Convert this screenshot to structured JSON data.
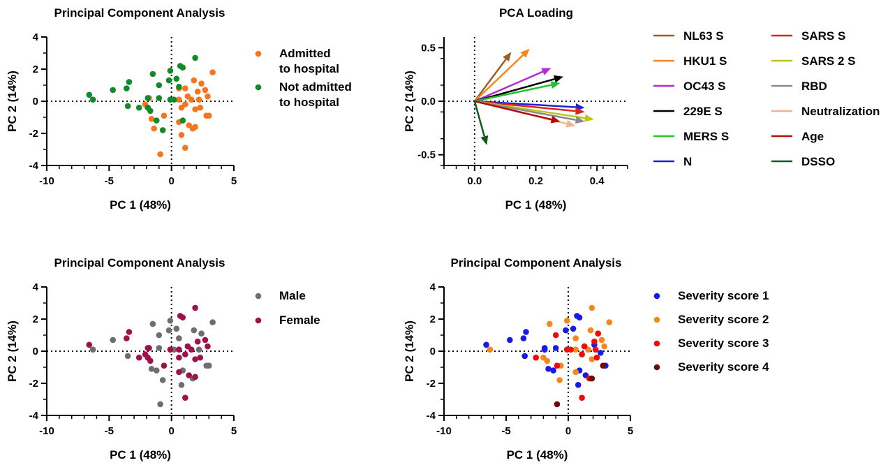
{
  "chart_data": [
    {
      "id": "p1",
      "type": "scatter",
      "title": "Principal Component Analysis",
      "xlabel": "PC 1 (48%)",
      "ylabel": "PC 2 (14%)",
      "xlim": [
        -10,
        5
      ],
      "ylim": [
        -4,
        4
      ],
      "xticks": [
        -10,
        -5,
        0,
        5
      ],
      "yticks": [
        -4,
        -2,
        0,
        2,
        4
      ],
      "grid": false,
      "legend_position": "right",
      "series": [
        {
          "name": "Admitted\nto hospital",
          "color": "#f5761e",
          "points": [
            [
              3.3,
              1.8
            ],
            [
              1.8,
              1.3
            ],
            [
              2.4,
              1.1
            ],
            [
              0.6,
              0.8
            ],
            [
              1.1,
              0.8
            ],
            [
              2.7,
              0.7
            ],
            [
              2.1,
              0.6
            ],
            [
              1.3,
              0.3
            ],
            [
              2.9,
              0.3
            ],
            [
              0.6,
              0.1
            ],
            [
              1.6,
              0.1
            ],
            [
              2.2,
              0.1
            ],
            [
              -1.8,
              0.2
            ],
            [
              -2.1,
              -0.2
            ],
            [
              1.1,
              -0.2
            ],
            [
              2.3,
              -0.4
            ],
            [
              0.8,
              -0.4
            ],
            [
              1.9,
              -0.5
            ],
            [
              2.8,
              -0.9
            ],
            [
              3.0,
              -0.9
            ],
            [
              -1.6,
              -1.1
            ],
            [
              -0.6,
              -0.9
            ],
            [
              0.6,
              -1.3
            ],
            [
              1.4,
              -1.5
            ],
            [
              1.9,
              -1.6
            ],
            [
              1.7,
              -1.7
            ],
            [
              -1.4,
              -1.7
            ],
            [
              0.8,
              -2.1
            ],
            [
              1.1,
              -2.9
            ],
            [
              -0.9,
              -3.3
            ]
          ]
        },
        {
          "name": "Not admitted\nto hospital",
          "color": "#138a2a",
          "points": [
            [
              -6.6,
              0.4
            ],
            [
              -6.3,
              0.1
            ],
            [
              -4.7,
              0.7
            ],
            [
              -3.4,
              1.2
            ],
            [
              -3.6,
              0.8
            ],
            [
              -3.5,
              -0.3
            ],
            [
              -2.6,
              -0.4
            ],
            [
              -1.5,
              1.7
            ],
            [
              1.9,
              2.7
            ],
            [
              0.7,
              2.2
            ],
            [
              0.9,
              2.1
            ],
            [
              -0.1,
              1.9
            ],
            [
              -0.2,
              1.3
            ],
            [
              0.4,
              1.4
            ],
            [
              -1.0,
              1.0
            ],
            [
              0.6,
              0.9
            ],
            [
              -1.9,
              0.2
            ],
            [
              -1.0,
              0.2
            ],
            [
              -0.1,
              0.1
            ],
            [
              0.2,
              0.1
            ],
            [
              -1.9,
              -0.4
            ],
            [
              -1.7,
              -0.6
            ],
            [
              -1.2,
              -1.2
            ],
            [
              0.9,
              -1.2
            ],
            [
              -0.7,
              -1.8
            ]
          ]
        }
      ]
    },
    {
      "id": "p2",
      "type": "vector",
      "title": "PCA Loading",
      "xlabel": "PC 1 (48%)",
      "ylabel": "PC 2 (14%)",
      "xlim": [
        -0.1,
        0.5
      ],
      "ylim": [
        -0.6,
        0.6
      ],
      "xticks": [
        0.0,
        0.2,
        0.4
      ],
      "yticks": [
        -0.5,
        0.0,
        0.5
      ],
      "xticklabels": [
        "0.0",
        "0.2",
        "0.4"
      ],
      "yticklabels": [
        "-0.5",
        "0.0",
        "0.5"
      ],
      "legend_position": "right",
      "series": [
        {
          "name": "NL63 S",
          "color": "#9a6027",
          "vector": [
            0.12,
            0.46
          ]
        },
        {
          "name": "HKU1 S",
          "color": "#f5871f",
          "vector": [
            0.18,
            0.49
          ]
        },
        {
          "name": "OC43 S",
          "color": "#b12ad6",
          "vector": [
            0.25,
            0.31
          ]
        },
        {
          "name": "229E S",
          "color": "#000000",
          "vector": [
            0.29,
            0.23
          ]
        },
        {
          "name": "MERS S",
          "color": "#1fc42a",
          "vector": [
            0.28,
            0.17
          ]
        },
        {
          "name": "N",
          "color": "#1a22d4",
          "vector": [
            0.36,
            -0.06
          ]
        },
        {
          "name": "SARS S",
          "color": "#e0241c",
          "vector": [
            0.36,
            -0.1
          ]
        },
        {
          "name": "SARS 2 S",
          "color": "#bec41c",
          "vector": [
            0.39,
            -0.17
          ]
        },
        {
          "name": "RBD",
          "color": "#8a8a8a",
          "vector": [
            0.36,
            -0.19
          ]
        },
        {
          "name": "Neutralization",
          "color": "#f0b48c",
          "vector": [
            0.33,
            -0.23
          ]
        },
        {
          "name": "Age",
          "color": "#b10f0f",
          "vector": [
            0.28,
            -0.19
          ]
        },
        {
          "name": "DSSO",
          "color": "#0e5c1a",
          "vector": [
            0.04,
            -0.41
          ]
        }
      ]
    },
    {
      "id": "p3",
      "type": "scatter",
      "title": "Principal Component Analysis",
      "xlabel": "PC 1 (48%)",
      "ylabel": "PC 2 (14%)",
      "xlim": [
        -10,
        5
      ],
      "ylim": [
        -4,
        4
      ],
      "xticks": [
        -10,
        -5,
        0,
        5
      ],
      "yticks": [
        -4,
        -2,
        0,
        2,
        4
      ],
      "grid": false,
      "legend_position": "right",
      "series": [
        {
          "name": "Male",
          "color": "#6e6e6e",
          "points": [
            [
              3.3,
              1.8
            ],
            [
              -6.3,
              0.1
            ],
            [
              -4.7,
              0.7
            ],
            [
              -1.5,
              1.7
            ],
            [
              -0.1,
              1.9
            ],
            [
              -0.2,
              1.3
            ],
            [
              0.4,
              1.4
            ],
            [
              1.8,
              1.3
            ],
            [
              0.6,
              0.8
            ],
            [
              -1.0,
              1.0
            ],
            [
              2.4,
              1.1
            ],
            [
              -1.0,
              0.2
            ],
            [
              0.2,
              0.1
            ],
            [
              2.2,
              0.1
            ],
            [
              -3.5,
              -0.3
            ],
            [
              -1.6,
              -1.1
            ],
            [
              -1.2,
              -1.2
            ],
            [
              0.9,
              -1.2
            ],
            [
              2.8,
              -0.9
            ],
            [
              3.0,
              -0.9
            ],
            [
              1.7,
              -1.7
            ],
            [
              -0.7,
              -1.8
            ],
            [
              0.8,
              -2.1
            ],
            [
              -0.9,
              -3.3
            ]
          ]
        },
        {
          "name": "Female",
          "color": "#a0104a",
          "points": [
            [
              -6.6,
              0.4
            ],
            [
              -3.6,
              0.8
            ],
            [
              -3.4,
              1.2
            ],
            [
              -2.6,
              -0.4
            ],
            [
              -1.9,
              0.2
            ],
            [
              -1.8,
              0.2
            ],
            [
              -2.1,
              -0.2
            ],
            [
              -1.9,
              -0.4
            ],
            [
              -1.7,
              -0.6
            ],
            [
              -0.6,
              -0.9
            ],
            [
              -0.1,
              0.1
            ],
            [
              0.6,
              0.1
            ],
            [
              0.6,
              -0.4
            ],
            [
              1.1,
              -0.2
            ],
            [
              1.3,
              0.3
            ],
            [
              1.6,
              0.1
            ],
            [
              0.7,
              2.2
            ],
            [
              0.9,
              2.1
            ],
            [
              1.9,
              2.7
            ],
            [
              2.1,
              0.6
            ],
            [
              2.7,
              0.7
            ],
            [
              2.9,
              0.3
            ],
            [
              2.3,
              -0.4
            ],
            [
              1.9,
              -0.5
            ],
            [
              0.6,
              -1.3
            ],
            [
              1.4,
              -1.5
            ],
            [
              1.9,
              -1.6
            ],
            [
              1.1,
              -2.9
            ]
          ]
        }
      ]
    },
    {
      "id": "p4",
      "type": "scatter",
      "title": "Principal Component Analysis",
      "xlabel": "PC 1 (48%)",
      "ylabel": "PC 2 (14%)",
      "xlim": [
        -10,
        5
      ],
      "ylim": [
        -4,
        4
      ],
      "xticks": [
        -10,
        -5,
        0,
        5
      ],
      "yticks": [
        -4,
        -2,
        0,
        2,
        4
      ],
      "grid": false,
      "legend_position": "right",
      "series": [
        {
          "name": "Severity score 1",
          "color": "#1a1ae6",
          "points": [
            [
              -6.6,
              0.4
            ],
            [
              -4.7,
              0.7
            ],
            [
              -3.6,
              0.8
            ],
            [
              -3.4,
              1.2
            ],
            [
              -3.5,
              -0.3
            ],
            [
              -1.9,
              0.2
            ],
            [
              -1.9,
              0.1
            ],
            [
              -1.0,
              0.2
            ],
            [
              -1.6,
              -1.1
            ],
            [
              -1.2,
              -1.2
            ],
            [
              -0.2,
              1.3
            ],
            [
              0.4,
              1.4
            ],
            [
              0.7,
              2.2
            ],
            [
              0.9,
              2.1
            ],
            [
              0.9,
              -1.2
            ],
            [
              1.4,
              -1.5
            ],
            [
              0.8,
              -2.1
            ],
            [
              2.1,
              0.4
            ],
            [
              2.6,
              -0.1
            ],
            [
              3.0,
              -0.9
            ]
          ]
        },
        {
          "name": "Severity score 2",
          "color": "#f5871f",
          "points": [
            [
              -6.3,
              0.1
            ],
            [
              -1.5,
              1.7
            ],
            [
              -0.1,
              1.9
            ],
            [
              0.6,
              0.8
            ],
            [
              1.9,
              2.7
            ],
            [
              1.8,
              1.3
            ],
            [
              2.4,
              1.1
            ],
            [
              3.3,
              1.8
            ],
            [
              2.7,
              0.7
            ],
            [
              2.9,
              0.3
            ],
            [
              1.6,
              0.1
            ],
            [
              0.6,
              0.1
            ],
            [
              1.1,
              -0.2
            ],
            [
              1.9,
              -0.5
            ],
            [
              0.6,
              -1.3
            ],
            [
              -0.6,
              -0.9
            ],
            [
              -0.7,
              -1.8
            ],
            [
              -2.0,
              -0.4
            ],
            [
              -1.7,
              -0.6
            ]
          ]
        },
        {
          "name": "Severity score 3",
          "color": "#f00a0a",
          "points": [
            [
              -2.6,
              -0.4
            ],
            [
              -1.0,
              1.0
            ],
            [
              -0.1,
              0.1
            ],
            [
              0.2,
              0.1
            ],
            [
              1.3,
              0.3
            ],
            [
              2.2,
              0.1
            ],
            [
              2.3,
              -0.4
            ],
            [
              2.1,
              0.6
            ],
            [
              2.4,
              1.1
            ],
            [
              1.1,
              -0.2
            ],
            [
              1.7,
              -1.7
            ],
            [
              1.1,
              -2.9
            ],
            [
              -0.9,
              -0.9
            ]
          ]
        },
        {
          "name": "Severity score 4",
          "color": "#6e0a0a",
          "points": [
            [
              -0.9,
              -3.3
            ],
            [
              1.9,
              -1.7
            ],
            [
              2.8,
              -0.9
            ]
          ]
        }
      ]
    }
  ]
}
